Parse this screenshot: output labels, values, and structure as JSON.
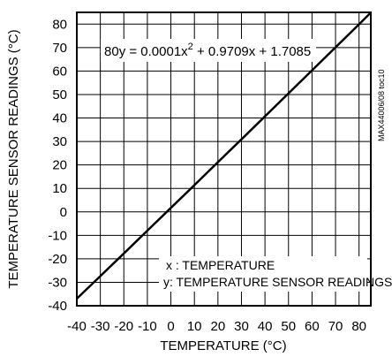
{
  "chart_data": {
    "type": "line",
    "title": "",
    "xlabel": "TEMPERATURE (°C)",
    "ylabel": "TEMPERATURE SENSOR READINGS (°C)",
    "xlim": [
      -40,
      85
    ],
    "ylim": [
      -40,
      85
    ],
    "x_ticks": [
      "-40",
      "-30",
      "-20",
      "-10",
      "0",
      "10",
      "20",
      "30",
      "40",
      "50",
      "60",
      "70",
      "80"
    ],
    "y_ticks": [
      "80",
      "70",
      "60",
      "50",
      "40",
      "30",
      "20",
      "10",
      "0",
      "-10",
      "-20",
      "-30",
      "-40"
    ],
    "grid": true,
    "series": [
      {
        "x": [
          -40,
          -30,
          -20,
          -10,
          0,
          10,
          20,
          30,
          40,
          50,
          60,
          70,
          80,
          85
        ],
        "y": [
          -37.0,
          -27.4,
          -17.7,
          -8.0,
          1.7,
          11.4,
          21.2,
          30.9,
          40.7,
          50.5,
          60.3,
          70.1,
          79.9,
          84.9
        ]
      }
    ],
    "annotations": {
      "equation_prefix": "y = 0.0001x",
      "equation_exp": "2",
      "equation_suffix": " + 0.9709x + 1.7085",
      "corner_label": "80",
      "legend_x": "x : TEMPERATURE",
      "legend_y": "y:  TEMPERATURE SENSOR READINGS",
      "figure_id": "MAX44006/08 toc10"
    },
    "line_color": "#000000"
  }
}
